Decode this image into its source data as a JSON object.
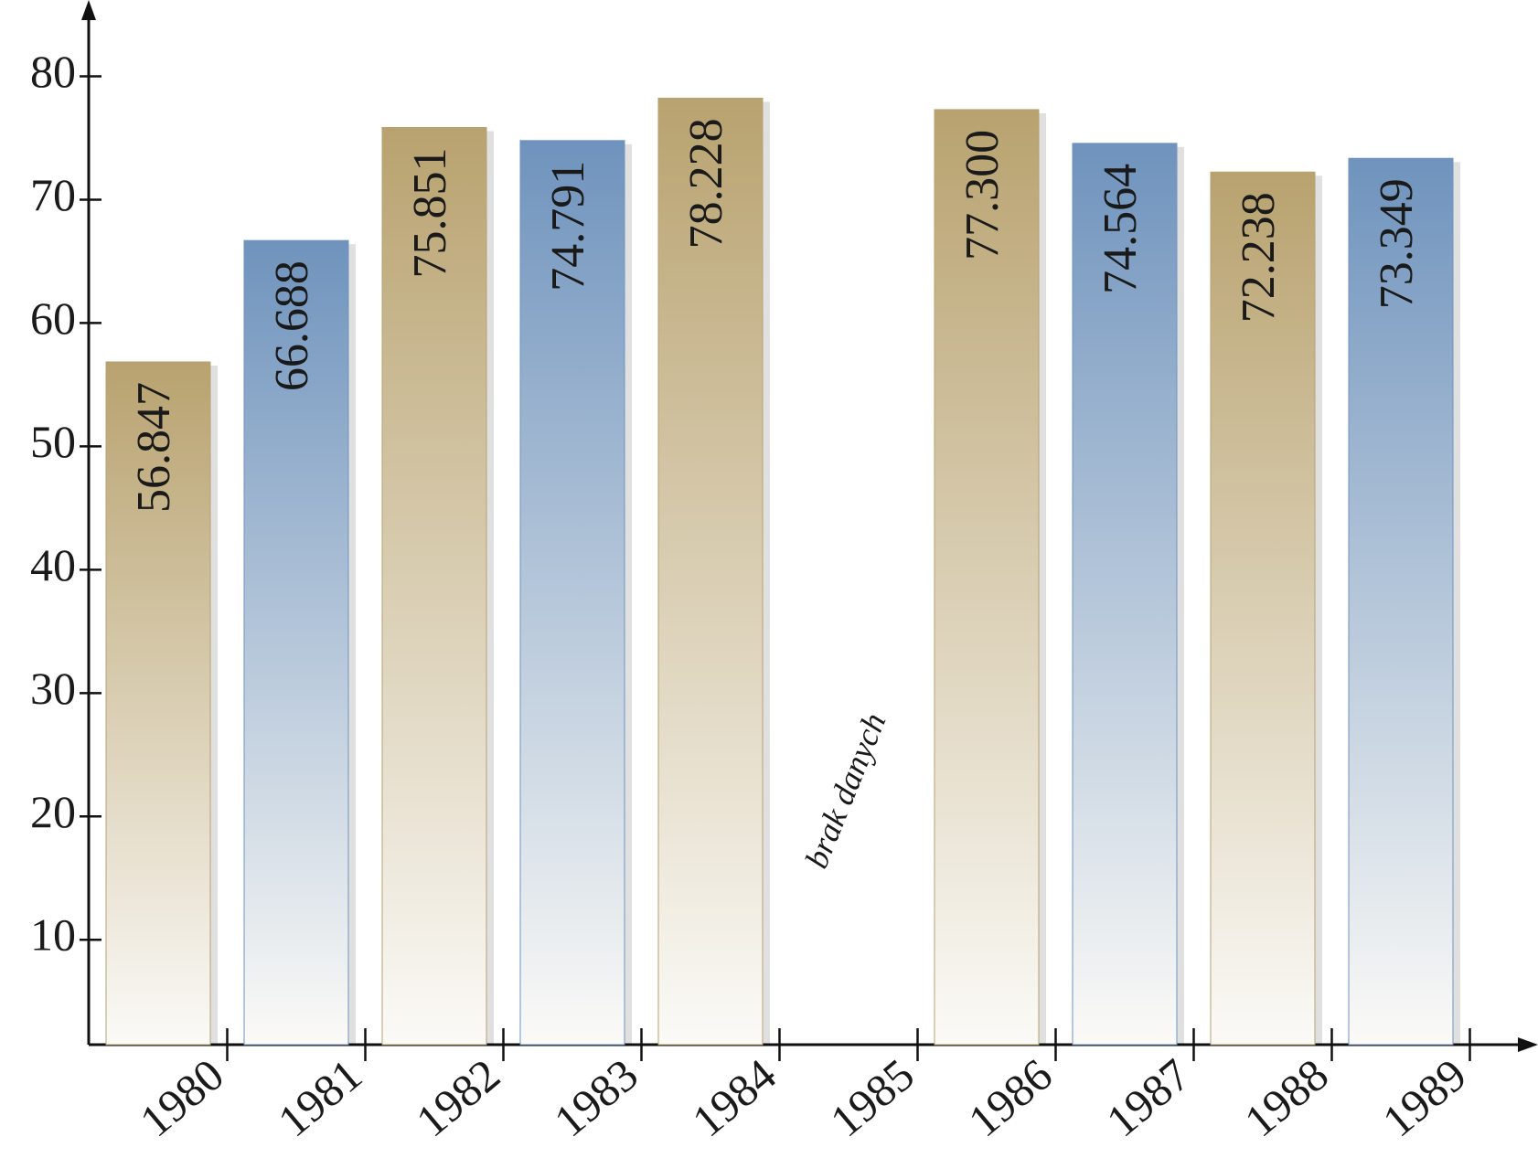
{
  "chart_data": {
    "type": "bar",
    "categories": [
      "1980",
      "1981",
      "1982",
      "1983",
      "1984",
      "1985",
      "1986",
      "1987",
      "1988",
      "1989"
    ],
    "values": [
      56.847,
      66.688,
      75.851,
      74.791,
      78.228,
      null,
      77.3,
      74.564,
      72.238,
      73.349
    ],
    "value_labels": [
      "56.847",
      "66.688",
      "75.851",
      "74.791",
      "78.228",
      null,
      "77.300",
      "74.564",
      "72.238",
      "73.349"
    ],
    "colors": [
      "#b8a26f",
      "#6f93bd",
      "#b8a26f",
      "#6f93bd",
      "#b8a26f",
      null,
      "#b8a26f",
      "#6f93bd",
      "#b8a26f",
      "#6f93bd"
    ],
    "annotation": "brak danych",
    "ylim": [
      1.5,
      85
    ],
    "yticks": [
      10,
      20,
      30,
      40,
      50,
      60,
      70,
      80
    ]
  }
}
